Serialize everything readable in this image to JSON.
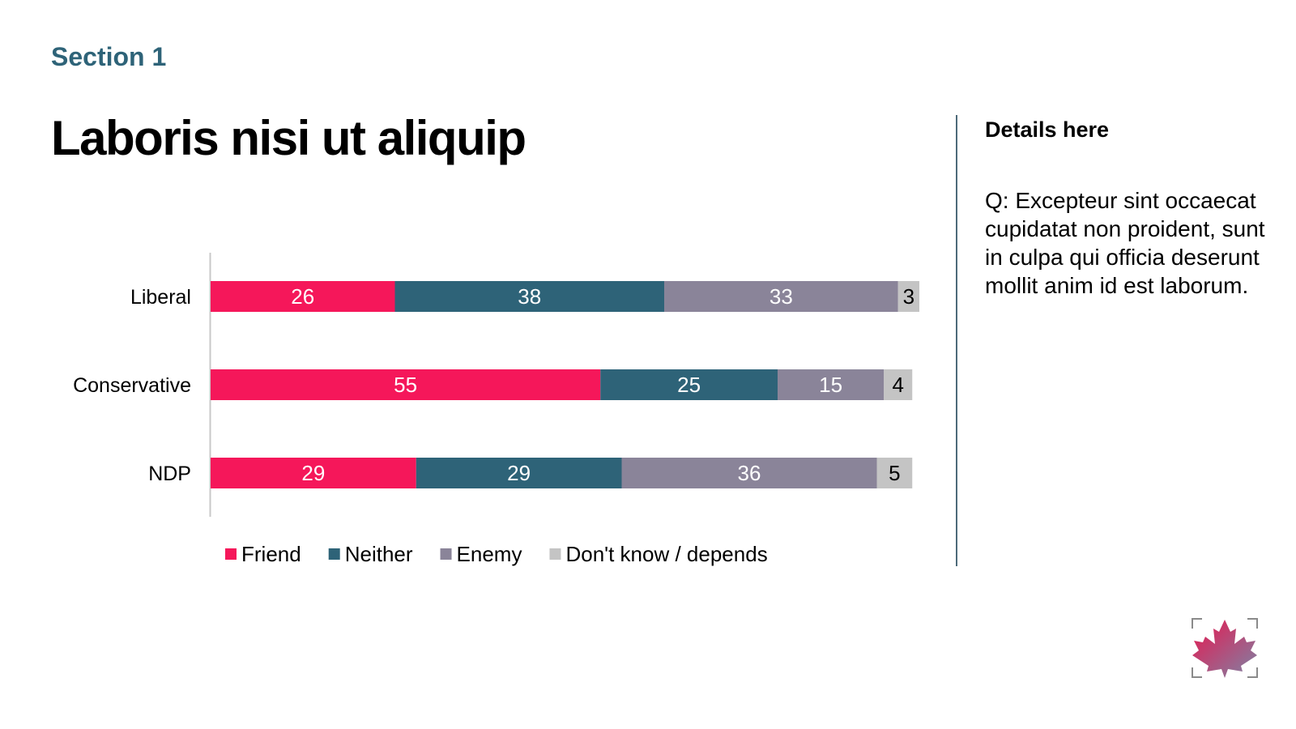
{
  "header": {
    "section": "Section 1",
    "title": "Laboris nisi ut aliquip"
  },
  "details": {
    "heading": "Details here",
    "question": "Q: Excepteur sint occaecat cupidatat non proident, sunt in culpa qui officia deserunt mollit anim id est laborum."
  },
  "logo": {
    "icon": "maple-leaf-icon"
  },
  "chart_data": {
    "type": "bar",
    "orientation": "horizontal",
    "stacked": true,
    "categories": [
      "Liberal",
      "Conservative",
      "NDP"
    ],
    "series": [
      {
        "name": "Friend",
        "values": [
          26,
          55,
          29
        ],
        "color": "#f5175a",
        "label_color": "#ffffff"
      },
      {
        "name": "Neither",
        "values": [
          38,
          25,
          29
        ],
        "color": "#2e6378",
        "label_color": "#ffffff"
      },
      {
        "name": "Enemy",
        "values": [
          33,
          15,
          36
        ],
        "color": "#8a8499",
        "label_color": "#ffffff"
      },
      {
        "name": "Don't know / depends",
        "values": [
          3,
          4,
          5
        ],
        "color": "#c4c4c4",
        "label_color": "#000000"
      }
    ],
    "xlim": [
      0,
      100
    ],
    "grid": false,
    "legend": "bottom",
    "data_labels": true
  }
}
